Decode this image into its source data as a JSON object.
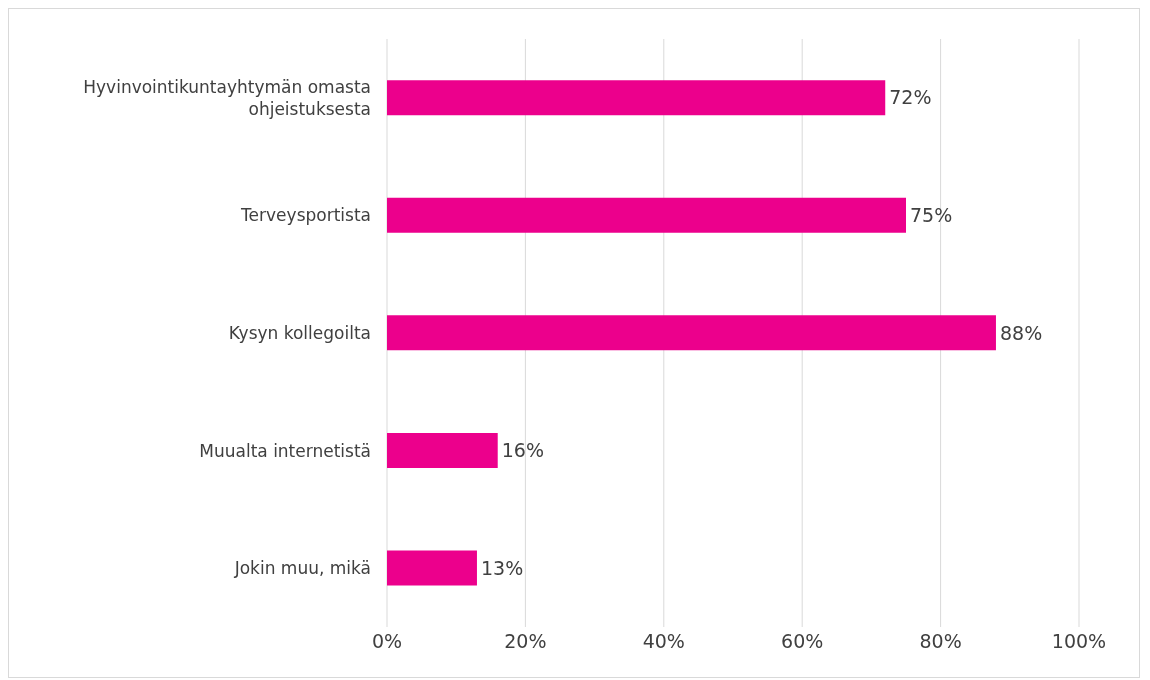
{
  "chart_data": {
    "type": "bar",
    "orientation": "horizontal",
    "categories": [
      "Hyvinvointikuntayhtymän omasta ohjeistuksesta",
      "Terveysportista",
      "Kysyn kollegoilta",
      "Muualta internetistä",
      "Jokin muu, mikä"
    ],
    "values": [
      72,
      75,
      88,
      16,
      13
    ],
    "value_labels": [
      "72%",
      "75%",
      "88%",
      "16%",
      "13%"
    ],
    "color": "#ec008c",
    "xlim": [
      0,
      100
    ],
    "xticks": [
      {
        "value": 0,
        "label": "0%"
      },
      {
        "value": 20,
        "label": "20%"
      },
      {
        "value": 40,
        "label": "40%"
      },
      {
        "value": 60,
        "label": "60%"
      },
      {
        "value": 80,
        "label": "80%"
      },
      {
        "value": 100,
        "label": "100%"
      }
    ],
    "grid": "x"
  }
}
